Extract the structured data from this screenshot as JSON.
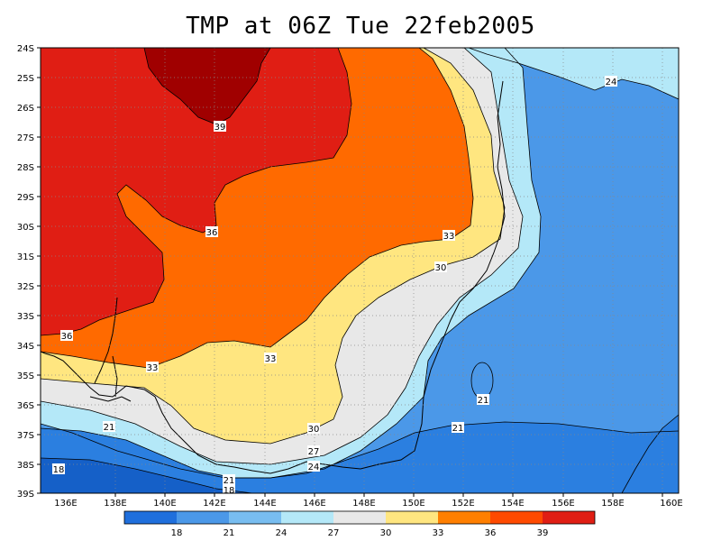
{
  "title": "TMP at 06Z Tue 22feb2005",
  "latitude_labels": [
    "24S",
    "25S",
    "26S",
    "27S",
    "28S",
    "29S",
    "30S",
    "31S",
    "32S",
    "33S",
    "34S",
    "35S",
    "36S",
    "37S",
    "38S",
    "39S"
  ],
  "longitude_labels": [
    "136E",
    "138E",
    "140E",
    "142E",
    "144E",
    "146E",
    "148E",
    "150E",
    "152E",
    "154E",
    "156E",
    "158E",
    "160E"
  ],
  "contour_labels": [
    {
      "text": "39"
    },
    {
      "text": "36"
    },
    {
      "text": "36"
    },
    {
      "text": "33"
    },
    {
      "text": "33"
    },
    {
      "text": "33"
    },
    {
      "text": "30"
    },
    {
      "text": "30"
    },
    {
      "text": "27"
    },
    {
      "text": "24"
    },
    {
      "text": "24"
    },
    {
      "text": "21"
    },
    {
      "text": "21"
    },
    {
      "text": "21"
    },
    {
      "text": "21"
    },
    {
      "text": "18"
    },
    {
      "text": "18"
    }
  ],
  "colorbar": {
    "colors": [
      "#1f6fdc",
      "#4b98e8",
      "#78bdf0",
      "#b4e8f8",
      "#e8e8e8",
      "#ffe680",
      "#ff7f00",
      "#ff4a00",
      "#e01e14",
      "#a00000"
    ],
    "labels": [
      "18",
      "21",
      "24",
      "27",
      "30",
      "33",
      "36",
      "39"
    ]
  },
  "legend_colors": {
    "t39plus": "#a00000",
    "t36_39": "#e01e14",
    "t33_36": "#ff6a00",
    "t30_33": "#ffe680",
    "t27_30": "#e8e8e8",
    "t24_27": "#b4e8f8",
    "t21_24": "#4b98e8",
    "t18_21": "#2b7fe0",
    "t18minus": "#1560c8"
  }
}
